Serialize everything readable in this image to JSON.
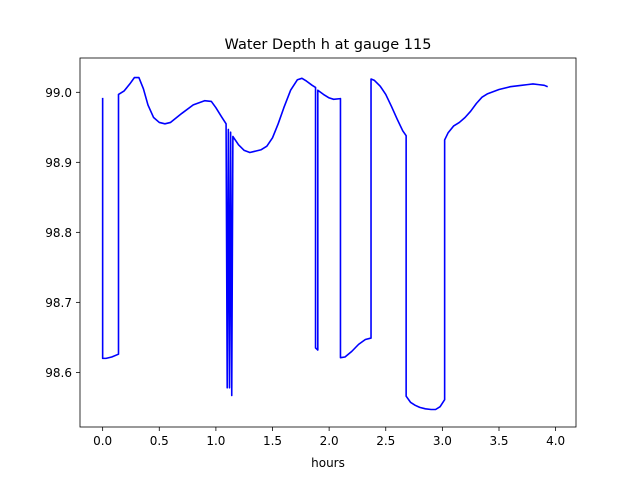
{
  "chart_data": {
    "type": "line",
    "title": "Water Depth h at gauge 115",
    "xlabel": "hours",
    "ylabel": "",
    "xlim": [
      -0.2,
      4.18
    ],
    "ylim": [
      98.522,
      99.049
    ],
    "x_ticks": [
      0.0,
      0.5,
      1.0,
      1.5,
      2.0,
      2.5,
      3.0,
      3.5,
      4.0
    ],
    "x_tick_labels": [
      "0.0",
      "0.5",
      "1.0",
      "1.5",
      "2.0",
      "2.5",
      "3.0",
      "3.5",
      "4.0"
    ],
    "y_ticks": [
      98.6,
      98.7,
      98.8,
      98.9,
      99.0
    ],
    "y_tick_labels": [
      "98.6",
      "98.7",
      "98.8",
      "98.9",
      "99.0"
    ],
    "grid": false,
    "legend": "none",
    "series": [
      {
        "color": "#0000ff",
        "points": [
          [
            0.0,
            98.992
          ],
          [
            0.0,
            98.62
          ],
          [
            0.03,
            98.62
          ],
          [
            0.08,
            98.622
          ],
          [
            0.14,
            98.626
          ],
          [
            0.14,
            98.997
          ],
          [
            0.19,
            99.002
          ],
          [
            0.24,
            99.012
          ],
          [
            0.28,
            99.021
          ],
          [
            0.32,
            99.021
          ],
          [
            0.36,
            99.005
          ],
          [
            0.4,
            98.982
          ],
          [
            0.45,
            98.964
          ],
          [
            0.5,
            98.957
          ],
          [
            0.55,
            98.955
          ],
          [
            0.6,
            98.957
          ],
          [
            0.7,
            98.97
          ],
          [
            0.8,
            98.982
          ],
          [
            0.9,
            98.988
          ],
          [
            0.96,
            98.987
          ],
          [
            1.0,
            98.978
          ],
          [
            1.05,
            98.965
          ],
          [
            1.09,
            98.955
          ],
          [
            1.1,
            98.578
          ],
          [
            1.11,
            98.947
          ],
          [
            1.12,
            98.578
          ],
          [
            1.13,
            98.943
          ],
          [
            1.14,
            98.567
          ],
          [
            1.15,
            98.937
          ],
          [
            1.2,
            98.925
          ],
          [
            1.25,
            98.917
          ],
          [
            1.3,
            98.914
          ],
          [
            1.35,
            98.916
          ],
          [
            1.4,
            98.918
          ],
          [
            1.45,
            98.923
          ],
          [
            1.5,
            98.935
          ],
          [
            1.55,
            98.955
          ],
          [
            1.6,
            98.978
          ],
          [
            1.66,
            99.003
          ],
          [
            1.72,
            99.018
          ],
          [
            1.76,
            99.02
          ],
          [
            1.8,
            99.016
          ],
          [
            1.85,
            99.01
          ],
          [
            1.88,
            99.007
          ],
          [
            1.88,
            98.635
          ],
          [
            1.9,
            98.632
          ],
          [
            1.9,
            99.003
          ],
          [
            1.95,
            98.997
          ],
          [
            2.0,
            98.992
          ],
          [
            2.04,
            98.99
          ],
          [
            2.1,
            98.991
          ],
          [
            2.1,
            98.621
          ],
          [
            2.14,
            98.622
          ],
          [
            2.2,
            98.63
          ],
          [
            2.26,
            98.64
          ],
          [
            2.32,
            98.647
          ],
          [
            2.37,
            98.649
          ],
          [
            2.37,
            99.019
          ],
          [
            2.4,
            99.017
          ],
          [
            2.45,
            99.009
          ],
          [
            2.5,
            98.997
          ],
          [
            2.55,
            98.98
          ],
          [
            2.6,
            98.962
          ],
          [
            2.65,
            98.945
          ],
          [
            2.68,
            98.938
          ],
          [
            2.68,
            98.566
          ],
          [
            2.72,
            98.557
          ],
          [
            2.76,
            98.553
          ],
          [
            2.8,
            98.55
          ],
          [
            2.85,
            98.548
          ],
          [
            2.9,
            98.547
          ],
          [
            2.94,
            98.547
          ],
          [
            2.98,
            98.551
          ],
          [
            3.0,
            98.556
          ],
          [
            3.02,
            98.561
          ],
          [
            3.02,
            98.932
          ],
          [
            3.05,
            98.942
          ],
          [
            3.1,
            98.952
          ],
          [
            3.15,
            98.957
          ],
          [
            3.2,
            98.964
          ],
          [
            3.25,
            98.973
          ],
          [
            3.3,
            98.984
          ],
          [
            3.35,
            98.993
          ],
          [
            3.4,
            98.998
          ],
          [
            3.5,
            99.004
          ],
          [
            3.6,
            99.008
          ],
          [
            3.7,
            99.01
          ],
          [
            3.75,
            99.011
          ],
          [
            3.8,
            99.012
          ],
          [
            3.85,
            99.011
          ],
          [
            3.9,
            99.01
          ],
          [
            3.93,
            99.008
          ]
        ]
      }
    ]
  }
}
